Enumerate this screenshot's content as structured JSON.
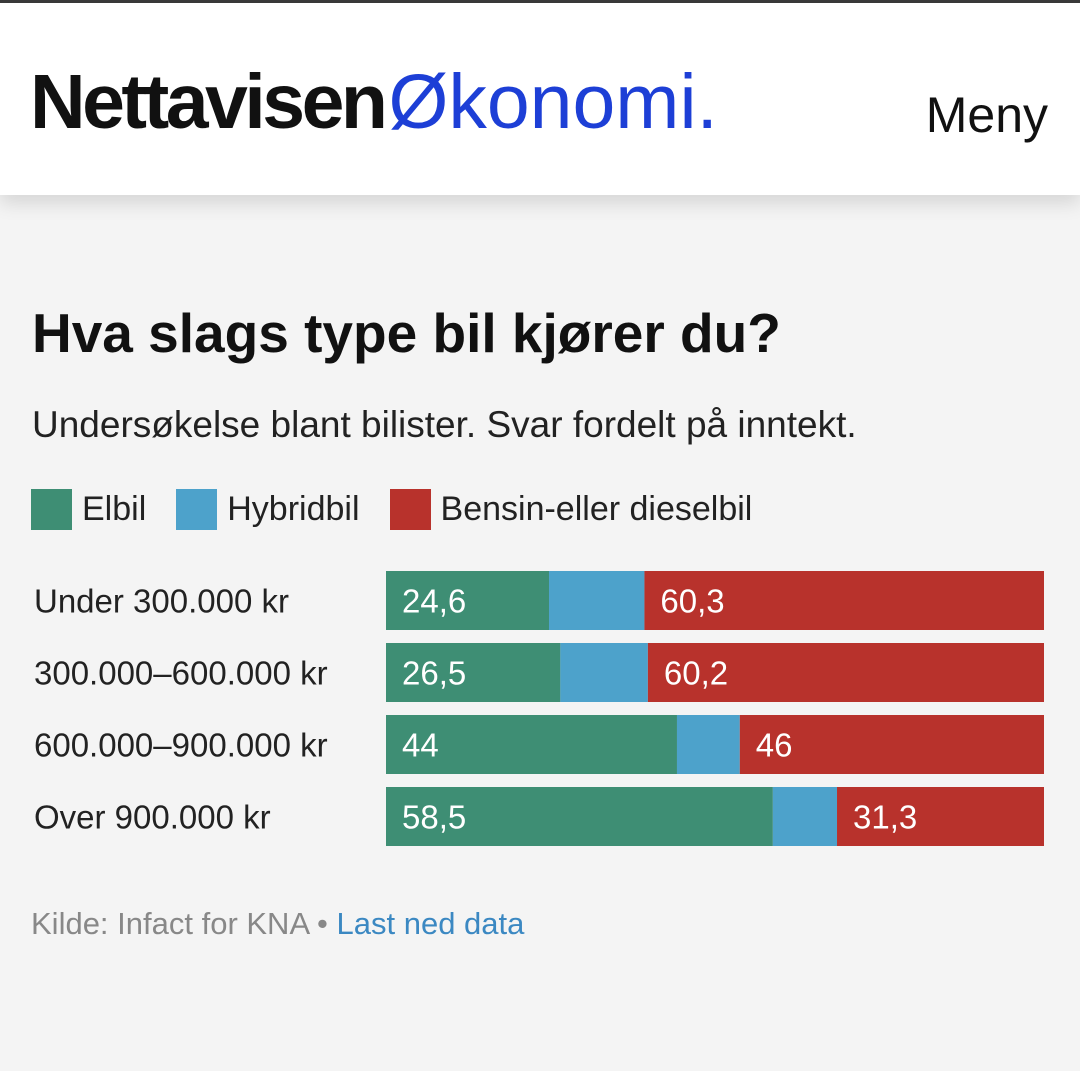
{
  "header": {
    "brand": "Nettavisen",
    "section": "Økonomi.",
    "menu_label": "Meny"
  },
  "colors": {
    "elbil": "#3e8e74",
    "hybridbil": "#4da2cb",
    "bensin": "#b8322c",
    "brand_blue": "#1d3fd6"
  },
  "chart_data": {
    "type": "bar",
    "orientation": "horizontal",
    "stacked": true,
    "title": "Hva slags type bil kjører du?",
    "subtitle": "Undersøkelse blant bilister. Svar fordelt på inntekt.",
    "legend_position": "top-left",
    "categories": [
      "Under 300.000 kr",
      "300.000–600.000 kr",
      "600.000–900.000 kr",
      "Over 900.000 kr"
    ],
    "series": [
      {
        "name": "Elbil",
        "color": "#3e8e74",
        "values": [
          24.6,
          26.5,
          44,
          58.5
        ],
        "labels": [
          "24,6",
          "26,5",
          "44",
          "58,5"
        ]
      },
      {
        "name": "Hybridbil",
        "color": "#4da2cb",
        "values": [
          14.4,
          13.3,
          9.5,
          9.7
        ],
        "labels": [
          "",
          "",
          "",
          ""
        ]
      },
      {
        "name": "Bensin-eller dieselbil",
        "color": "#b8322c",
        "values": [
          60.3,
          60.2,
          46,
          31.3
        ],
        "labels": [
          "60,3",
          "60,2",
          "46",
          "31,3"
        ]
      }
    ]
  },
  "footer": {
    "source": "Kilde: Infact for KNA",
    "separator": " • ",
    "link": "Last ned data"
  }
}
